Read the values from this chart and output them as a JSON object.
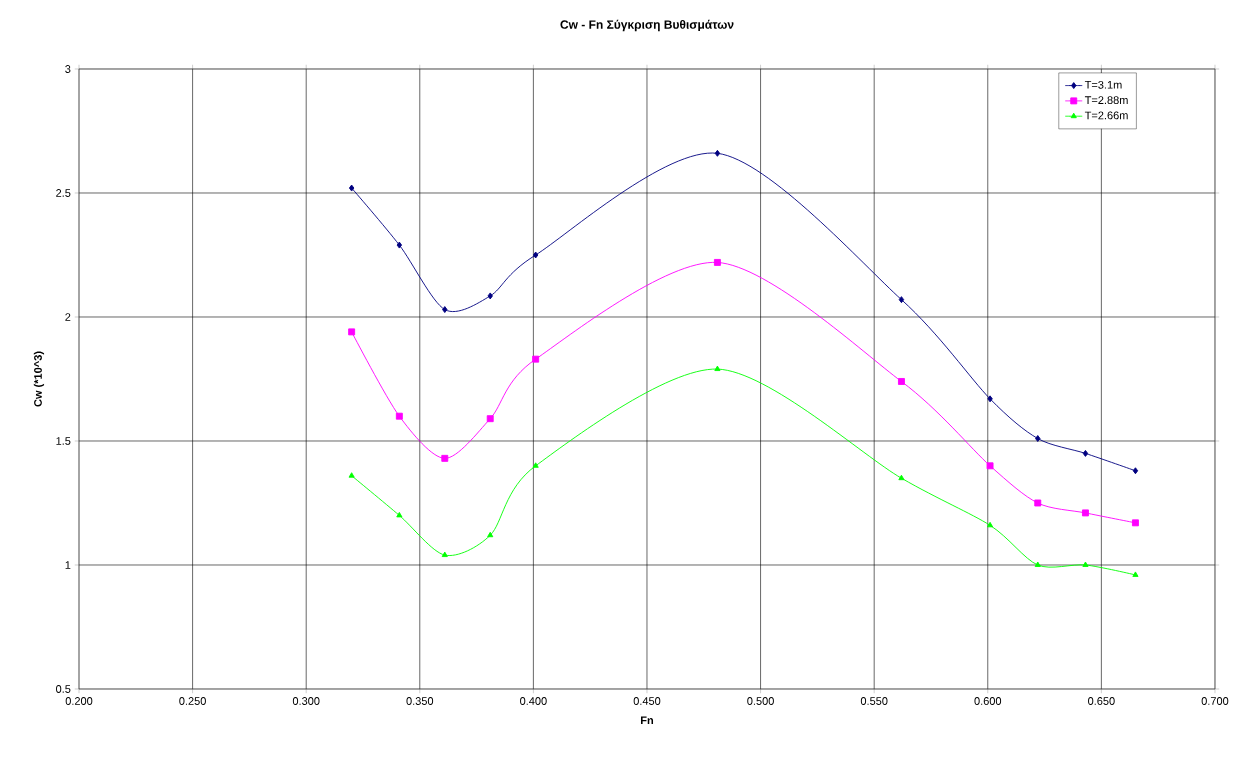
{
  "chart_data": {
    "type": "line",
    "title": "Cw - Fn Σύγκριση Βυθισμάτων",
    "xlabel": "Fn",
    "ylabel": "Cw (*10^3)",
    "x": [
      0.32,
      0.341,
      0.361,
      0.381,
      0.401,
      0.481,
      0.562,
      0.601,
      0.622,
      0.643,
      0.665
    ],
    "series": [
      {
        "name": "T=3.1m",
        "color": "#000080",
        "marker": "diamond",
        "values": [
          2.52,
          2.29,
          2.03,
          2.085,
          2.25,
          2.66,
          2.07,
          1.67,
          1.51,
          1.45,
          1.38
        ]
      },
      {
        "name": "T=2.88m",
        "color": "#ff00ff",
        "marker": "square",
        "values": [
          1.94,
          1.6,
          1.43,
          1.59,
          1.83,
          2.22,
          1.74,
          1.4,
          1.25,
          1.21,
          1.17
        ]
      },
      {
        "name": "T=2.66m",
        "color": "#00ff00",
        "marker": "triangle",
        "values": [
          1.36,
          1.2,
          1.04,
          1.12,
          1.4,
          1.79,
          1.35,
          1.16,
          1.0,
          1.0,
          0.96
        ]
      }
    ],
    "xlim": [
      0.2,
      0.7
    ],
    "xticks": [
      {
        "value": 0.2,
        "label": "0.200"
      },
      {
        "value": 0.25,
        "label": "0.250"
      },
      {
        "value": 0.3,
        "label": "0.300"
      },
      {
        "value": 0.35,
        "label": "0.350"
      },
      {
        "value": 0.4,
        "label": "0.400"
      },
      {
        "value": 0.45,
        "label": "0.450"
      },
      {
        "value": 0.5,
        "label": "0.500"
      },
      {
        "value": 0.55,
        "label": "0.550"
      },
      {
        "value": 0.6,
        "label": "0.600"
      },
      {
        "value": 0.65,
        "label": "0.650"
      },
      {
        "value": 0.7,
        "label": "0.700"
      }
    ],
    "ylim": [
      0.5,
      3
    ],
    "yticks": [
      0.5,
      1,
      1.5,
      2,
      2.5,
      3
    ],
    "grid": true,
    "legend": "top right"
  }
}
